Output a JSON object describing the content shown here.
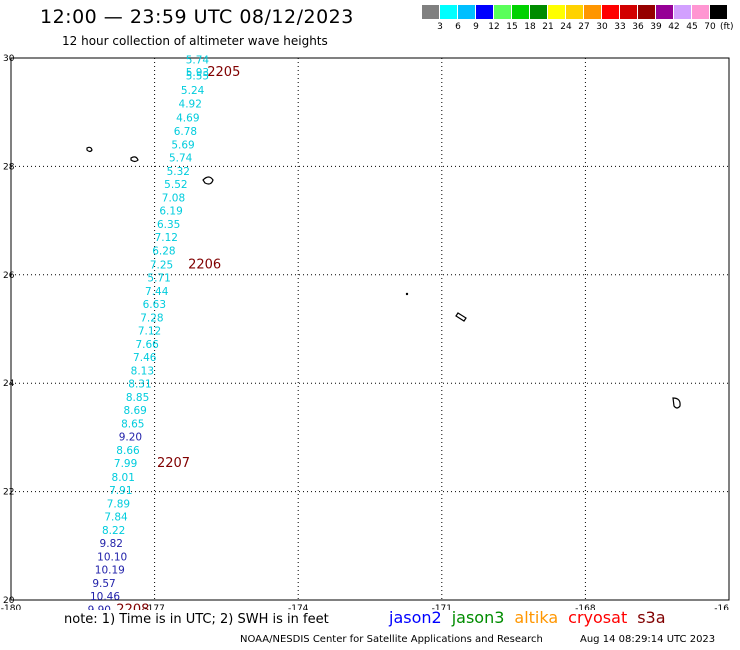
{
  "header": {
    "title": "12:00 — 23:59 UTC 08/12/2023",
    "subtitle": "12 hour collection of altimeter wave heights"
  },
  "legend": {
    "colors": [
      "#808080",
      "#00ffff",
      "#00bfff",
      "#0000ff",
      "#5aff5a",
      "#00d200",
      "#008c00",
      "#ffff00",
      "#ffd200",
      "#ff9600",
      "#ff0000",
      "#d20000",
      "#960000",
      "#960096",
      "#d2a0ff",
      "#ff96d2",
      "#000000"
    ],
    "ticks": [
      "3",
      "6",
      "9",
      "12",
      "15",
      "18",
      "21",
      "24",
      "27",
      "30",
      "33",
      "36",
      "39",
      "42",
      "45",
      "70"
    ],
    "unit": "(ft)"
  },
  "map": {
    "x_ticks": [
      "-180",
      "-177",
      "-174",
      "-171",
      "-168",
      "-16"
    ],
    "y_ticks": [
      "30",
      "28",
      "26",
      "24",
      "22",
      "20"
    ],
    "lon_range": [
      -180,
      -165
    ],
    "lat_range": [
      20,
      30
    ],
    "track": [
      {
        "lon": -176.35,
        "lat": 29.9,
        "label": "5.74",
        "color": "#00ccdd"
      },
      {
        "lon": -176.35,
        "lat": 29.67,
        "label": "5.93",
        "color": "#00ccdd"
      },
      {
        "lon": -176.35,
        "lat": 29.6,
        "label": "5.55",
        "color": "#00ccdd"
      },
      {
        "lon": -176.45,
        "lat": 29.34,
        "label": "5.24",
        "color": "#00ccdd"
      },
      {
        "lon": -176.5,
        "lat": 29.09,
        "label": "4.92",
        "color": "#00ccdd"
      },
      {
        "lon": -176.55,
        "lat": 28.83,
        "label": "4.69",
        "color": "#00ccdd"
      },
      {
        "lon": -176.6,
        "lat": 28.58,
        "label": "6.78",
        "color": "#00ccdd"
      },
      {
        "lon": -176.65,
        "lat": 28.33,
        "label": "5.69",
        "color": "#00ccdd"
      },
      {
        "lon": -176.7,
        "lat": 28.09,
        "label": "5.74",
        "color": "#00ccdd"
      },
      {
        "lon": -176.75,
        "lat": 27.84,
        "label": "5.32",
        "color": "#00ccdd"
      },
      {
        "lon": -176.8,
        "lat": 27.6,
        "label": "5.52",
        "color": "#00ccdd"
      },
      {
        "lon": -176.85,
        "lat": 27.35,
        "label": "7.08",
        "color": "#00ccdd"
      },
      {
        "lon": -176.9,
        "lat": 27.11,
        "label": "6.19",
        "color": "#00ccdd"
      },
      {
        "lon": -176.95,
        "lat": 26.86,
        "label": "6.35",
        "color": "#00ccdd"
      },
      {
        "lon": -177.0,
        "lat": 26.62,
        "label": "7.12",
        "color": "#00ccdd"
      },
      {
        "lon": -177.05,
        "lat": 26.37,
        "label": "6.28",
        "color": "#00ccdd"
      },
      {
        "lon": -177.1,
        "lat": 26.12,
        "label": "7.25",
        "color": "#00ccdd"
      },
      {
        "lon": -177.15,
        "lat": 25.88,
        "label": "5.71",
        "color": "#00ccdd"
      },
      {
        "lon": -177.2,
        "lat": 25.63,
        "label": "7.44",
        "color": "#00ccdd"
      },
      {
        "lon": -177.25,
        "lat": 25.39,
        "label": "6.63",
        "color": "#00ccdd"
      },
      {
        "lon": -177.3,
        "lat": 25.14,
        "label": "7.28",
        "color": "#00ccdd"
      },
      {
        "lon": -177.35,
        "lat": 24.9,
        "label": "7.12",
        "color": "#00ccdd"
      },
      {
        "lon": -177.4,
        "lat": 24.65,
        "label": "7.66",
        "color": "#00ccdd"
      },
      {
        "lon": -177.45,
        "lat": 24.41,
        "label": "7.46",
        "color": "#00ccdd"
      },
      {
        "lon": -177.5,
        "lat": 24.16,
        "label": "8.13",
        "color": "#00ccdd"
      },
      {
        "lon": -177.55,
        "lat": 23.92,
        "label": "8.31",
        "color": "#00ccdd"
      },
      {
        "lon": -177.6,
        "lat": 23.67,
        "label": "8.85",
        "color": "#00ccdd"
      },
      {
        "lon": -177.65,
        "lat": 23.43,
        "label": "8.69",
        "color": "#00ccdd"
      },
      {
        "lon": -177.7,
        "lat": 23.18,
        "label": "8.65",
        "color": "#00ccdd"
      },
      {
        "lon": -177.75,
        "lat": 22.94,
        "label": "9.20",
        "color": "#2222aa"
      },
      {
        "lon": -177.8,
        "lat": 22.69,
        "label": "8.66",
        "color": "#00ccdd"
      },
      {
        "lon": -177.85,
        "lat": 22.45,
        "label": "7.99",
        "color": "#00ccdd"
      },
      {
        "lon": -177.9,
        "lat": 22.2,
        "label": "8.01",
        "color": "#00ccdd"
      },
      {
        "lon": -177.95,
        "lat": 21.96,
        "label": "7.91",
        "color": "#00ccdd"
      },
      {
        "lon": -178.0,
        "lat": 21.71,
        "label": "7.89",
        "color": "#00ccdd"
      },
      {
        "lon": -178.05,
        "lat": 21.47,
        "label": "7.84",
        "color": "#00ccdd"
      },
      {
        "lon": -178.1,
        "lat": 21.22,
        "label": "8.22",
        "color": "#00ccdd"
      },
      {
        "lon": -178.15,
        "lat": 20.98,
        "label": "9.82",
        "color": "#2222aa"
      },
      {
        "lon": -178.2,
        "lat": 20.73,
        "label": "10.10",
        "color": "#2222aa"
      },
      {
        "lon": -178.25,
        "lat": 20.49,
        "label": "10.19",
        "color": "#2222aa"
      },
      {
        "lon": -178.3,
        "lat": 20.24,
        "label": "9.57",
        "color": "#2222aa"
      },
      {
        "lon": -178.35,
        "lat": 20.0,
        "label": "10.46",
        "color": "#2222aa"
      },
      {
        "lon": -178.4,
        "lat": 19.75,
        "label": "9.90",
        "color": "#2222aa"
      }
    ],
    "time_labels": [
      {
        "lon": -175.9,
        "lat": 29.67,
        "text": "2205"
      },
      {
        "lon": -176.3,
        "lat": 26.12,
        "text": "2206"
      },
      {
        "lon": -176.95,
        "lat": 22.45,
        "text": "2207"
      },
      {
        "lon": -177.8,
        "lat": 19.75,
        "text": "2208"
      }
    ],
    "time_label_color": "#800000"
  },
  "footer": {
    "note": "note:  1) Time is in UTC;  2) SWH is in feet",
    "satellites": [
      {
        "name": "jason2",
        "color": "#0000ff"
      },
      {
        "name": "jason3",
        "color": "#008c00"
      },
      {
        "name": "altika",
        "color": "#ff9600"
      },
      {
        "name": "cryosat",
        "color": "#ff0000"
      },
      {
        "name": "s3a",
        "color": "#800000"
      }
    ],
    "credit": "NOAA/NESDIS Center for Satellite Applications and Research",
    "timestamp": "Aug 14 08:29:14 UTC 2023"
  }
}
